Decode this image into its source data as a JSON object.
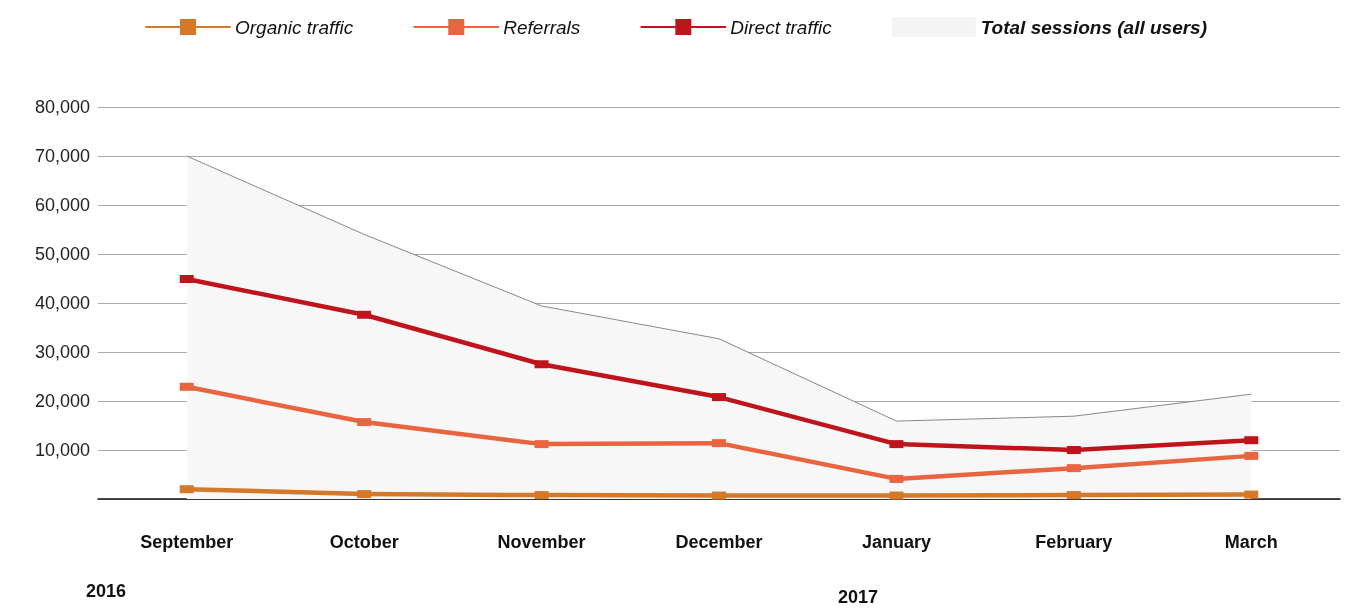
{
  "chart_data": {
    "type": "line",
    "categories": [
      "September",
      "October",
      "November",
      "December",
      "January",
      "February",
      "March"
    ],
    "series": [
      {
        "name": "Organic traffic",
        "color": "#d4782a",
        "values": [
          2000,
          1000,
          800,
          700,
          700,
          800,
          900
        ]
      },
      {
        "name": "Referrals",
        "color": "#e86540",
        "values": [
          22900,
          15700,
          11200,
          11400,
          4100,
          6300,
          8800
        ]
      },
      {
        "name": "Direct traffic",
        "color": "#c0141c",
        "values": [
          44900,
          37600,
          27500,
          20800,
          11200,
          10000,
          12000
        ]
      },
      {
        "name": "Total sessions (all users)",
        "type": "area",
        "marker": "none",
        "color": "#888888",
        "values": [
          70000,
          54000,
          39400,
          32700,
          15900,
          16900,
          21400
        ]
      }
    ],
    "ylim": [
      0,
      80000
    ],
    "yticks": [
      {
        "value": 0,
        "label": null
      },
      {
        "value": 10000,
        "label": "10,000"
      },
      {
        "value": 20000,
        "label": "20,000"
      },
      {
        "value": 30000,
        "label": "30,000"
      },
      {
        "value": 40000,
        "label": "40,000"
      },
      {
        "value": 50000,
        "label": "50,000"
      },
      {
        "value": 60000,
        "label": "60,000"
      },
      {
        "value": 70000,
        "label": "70,000"
      },
      {
        "value": 80000,
        "label": "80,000"
      }
    ],
    "grid": "y",
    "legend": "top",
    "marker": "square",
    "line_style": "solid",
    "annotations": [
      "2016",
      "2017"
    ]
  }
}
